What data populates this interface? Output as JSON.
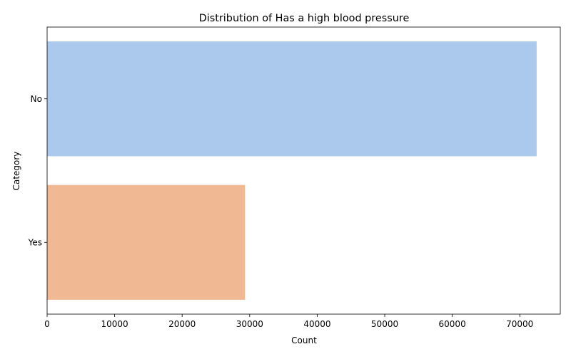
{
  "chart_data": {
    "type": "bar",
    "orientation": "horizontal",
    "title": "Distribution of Has a high blood pressure",
    "xlabel": "Count",
    "ylabel": "Category",
    "categories": [
      "No",
      "Yes"
    ],
    "values": [
      72500,
      29300
    ],
    "colors": [
      "#abc9ed",
      "#f0b994"
    ],
    "xlim": [
      0,
      76000
    ],
    "xticks": [
      0,
      10000,
      20000,
      30000,
      40000,
      50000,
      60000,
      70000
    ],
    "grid": false,
    "legend": "none"
  }
}
